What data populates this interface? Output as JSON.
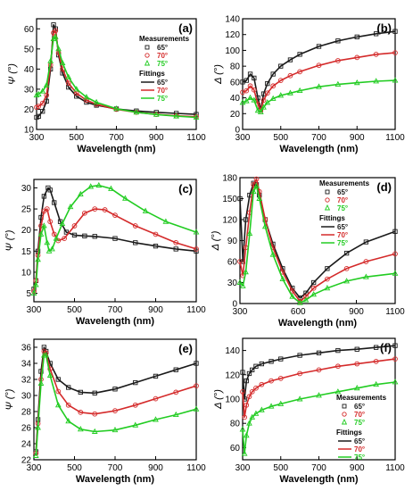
{
  "chart_data": [
    {
      "type": "line",
      "panel_label": "(a)",
      "xlabel": "Wavelength (nm)",
      "ylabel": "Ψ (°)",
      "xlim": [
        300,
        1100
      ],
      "ylim": [
        10,
        65
      ],
      "xticks": [
        300,
        500,
        700,
        900,
        1100
      ],
      "yticks": [
        10,
        20,
        30,
        40,
        50,
        60
      ],
      "legend": {
        "position": "right",
        "measurements_title": "Measurements",
        "fittings_title": "Fittings",
        "labels": [
          "65°",
          "70°",
          "75°"
        ]
      },
      "series": [
        {
          "name": "65°",
          "color": "#1a1a1a",
          "marker": "square",
          "x": [
            300,
            310,
            330,
            350,
            370,
            385,
            395,
            410,
            430,
            460,
            500,
            550,
            600,
            700,
            800,
            900,
            1000,
            1100
          ],
          "y": [
            16,
            16.5,
            19,
            24,
            40,
            62,
            60,
            47,
            38,
            31,
            26.5,
            23.5,
            22,
            20.2,
            19.2,
            18.5,
            18,
            17.5
          ]
        },
        {
          "name": "70°",
          "color": "#d42a2a",
          "marker": "circle",
          "x": [
            300,
            310,
            330,
            350,
            370,
            385,
            395,
            410,
            430,
            460,
            500,
            550,
            600,
            700,
            800,
            900,
            1000,
            1100
          ],
          "y": [
            21,
            21.5,
            23,
            27,
            42,
            58,
            59,
            48,
            40,
            33,
            28,
            24.5,
            22.5,
            20,
            18.5,
            17.5,
            16.8,
            16.3
          ]
        },
        {
          "name": "75°",
          "color": "#22cc22",
          "marker": "triangle",
          "x": [
            300,
            310,
            330,
            350,
            370,
            385,
            395,
            410,
            430,
            460,
            500,
            550,
            600,
            700,
            800,
            900,
            1000,
            1100
          ],
          "y": [
            27,
            27.5,
            29,
            32,
            44,
            55,
            56,
            50,
            43,
            36,
            30,
            26,
            23.5,
            20.3,
            18.5,
            17.4,
            16.6,
            16
          ]
        }
      ]
    },
    {
      "type": "line",
      "panel_label": "(b)",
      "xlabel": "Wavelength (nm)",
      "ylabel": "Δ (°)",
      "xlim": [
        300,
        1100
      ],
      "ylim": [
        0,
        140
      ],
      "xticks": [
        300,
        500,
        700,
        900,
        1100
      ],
      "yticks": [
        0,
        20,
        40,
        60,
        80,
        100,
        120,
        140
      ],
      "series": [
        {
          "name": "65°",
          "color": "#1a1a1a",
          "marker": "square",
          "x": [
            300,
            320,
            340,
            360,
            380,
            395,
            410,
            430,
            460,
            500,
            550,
            600,
            700,
            800,
            900,
            1000,
            1100
          ],
          "y": [
            60,
            62,
            70,
            65,
            40,
            25,
            45,
            58,
            70,
            80,
            88,
            95,
            105,
            112,
            117,
            121,
            124
          ]
        },
        {
          "name": "70°",
          "color": "#d42a2a",
          "marker": "circle",
          "x": [
            300,
            320,
            340,
            360,
            380,
            395,
            410,
            430,
            460,
            500,
            550,
            600,
            700,
            800,
            900,
            1000,
            1100
          ],
          "y": [
            47,
            49,
            55,
            50,
            32,
            24,
            37,
            46,
            55,
            62,
            68,
            73,
            81,
            87,
            91,
            95,
            97
          ]
        },
        {
          "name": "75°",
          "color": "#22cc22",
          "marker": "triangle",
          "x": [
            300,
            320,
            340,
            360,
            380,
            395,
            410,
            430,
            460,
            500,
            550,
            600,
            700,
            800,
            900,
            1000,
            1100
          ],
          "y": [
            34,
            36,
            40,
            37,
            24,
            22,
            28,
            34,
            39,
            43,
            46,
            49,
            54,
            57,
            59,
            61,
            62
          ]
        }
      ]
    },
    {
      "type": "line",
      "panel_label": "(c)",
      "xlabel": "Wavelength (nm)",
      "ylabel": "Ψ (°)",
      "xlim": [
        300,
        1100
      ],
      "ylim": [
        3,
        32
      ],
      "xticks": [
        300,
        500,
        700,
        900,
        1100
      ],
      "yticks": [
        5,
        10,
        15,
        20,
        25,
        30
      ],
      "series": [
        {
          "name": "65°",
          "color": "#1a1a1a",
          "marker": "square",
          "x": [
            300,
            310,
            320,
            335,
            350,
            370,
            380,
            400,
            430,
            460,
            500,
            550,
            600,
            700,
            800,
            900,
            1000,
            1100
          ],
          "y": [
            6,
            8,
            15,
            23,
            28,
            30,
            29.5,
            26.5,
            22,
            19.5,
            18.8,
            18.6,
            18.5,
            18,
            17,
            16.2,
            15.5,
            15
          ]
        },
        {
          "name": "70°",
          "color": "#d42a2a",
          "marker": "circle",
          "x": [
            300,
            310,
            320,
            335,
            350,
            365,
            380,
            400,
            420,
            450,
            500,
            550,
            600,
            650,
            700,
            800,
            900,
            1000,
            1100
          ],
          "y": [
            5.5,
            8,
            14,
            21,
            24.5,
            25,
            22,
            19,
            17.5,
            18,
            21,
            24,
            25,
            24.8,
            23.5,
            21,
            19,
            17,
            15.5
          ]
        },
        {
          "name": "75°",
          "color": "#22cc22",
          "marker": "triangle",
          "x": [
            300,
            310,
            320,
            335,
            350,
            365,
            375,
            390,
            410,
            440,
            480,
            530,
            580,
            620,
            680,
            750,
            850,
            950,
            1100
          ],
          "y": [
            5,
            7,
            13,
            19,
            21,
            17,
            15,
            15.5,
            18,
            21.5,
            25.5,
            28.5,
            30.3,
            30.6,
            29.8,
            27.5,
            24.5,
            22,
            19.5
          ]
        }
      ]
    },
    {
      "type": "line",
      "panel_label": "(d)",
      "xlabel": "Wavelength (nm)",
      "ylabel": "Δ (°)",
      "xlim": [
        300,
        1100
      ],
      "ylim": [
        0,
        180
      ],
      "xticks": [
        300,
        600,
        900,
        1100
      ],
      "yticks": [
        0,
        30,
        60,
        90,
        120,
        150,
        180
      ],
      "legend": {
        "position": "top-right",
        "measurements_title": "Measurements",
        "fittings_title": "Fittings",
        "labels": [
          "65°",
          "70°",
          "75°"
        ]
      },
      "series": [
        {
          "name": "65°",
          "color": "#1a1a1a",
          "marker": "square",
          "x": [
            300,
            315,
            330,
            350,
            370,
            385,
            400,
            430,
            470,
            520,
            570,
            610,
            640,
            680,
            750,
            850,
            950,
            1100
          ],
          "y": [
            150,
            60,
            120,
            155,
            172,
            170,
            155,
            120,
            85,
            50,
            22,
            8,
            15,
            30,
            50,
            72,
            88,
            103
          ]
        },
        {
          "name": "70°",
          "color": "#d42a2a",
          "marker": "circle",
          "x": [
            300,
            315,
            330,
            350,
            370,
            385,
            400,
            430,
            470,
            520,
            570,
            610,
            640,
            680,
            750,
            850,
            950,
            1100
          ],
          "y": [
            60,
            40,
            80,
            130,
            170,
            178,
            160,
            120,
            80,
            45,
            18,
            3,
            10,
            22,
            35,
            50,
            60,
            71
          ]
        },
        {
          "name": "75°",
          "color": "#22cc22",
          "marker": "triangle",
          "x": [
            300,
            315,
            330,
            350,
            370,
            385,
            400,
            430,
            470,
            520,
            570,
            610,
            640,
            680,
            750,
            850,
            950,
            1100
          ],
          "y": [
            30,
            25,
            45,
            100,
            160,
            168,
            150,
            110,
            70,
            35,
            10,
            1,
            5,
            13,
            22,
            32,
            38,
            43
          ]
        }
      ]
    },
    {
      "type": "line",
      "panel_label": "(e)",
      "xlabel": "Wavelength (nm)",
      "ylabel": "Ψ (°)",
      "xlim": [
        300,
        1100
      ],
      "ylim": [
        22,
        37
      ],
      "xticks": [
        300,
        500,
        700,
        900,
        1100
      ],
      "yticks": [
        22,
        24,
        26,
        28,
        30,
        32,
        34,
        36
      ],
      "series": [
        {
          "name": "65°",
          "color": "#1a1a1a",
          "marker": "square",
          "x": [
            310,
            320,
            335,
            350,
            360,
            380,
            420,
            470,
            530,
            600,
            700,
            800,
            900,
            1000,
            1100
          ],
          "y": [
            23,
            27,
            33,
            36,
            35.5,
            34,
            32,
            31,
            30.4,
            30.3,
            30.8,
            31.6,
            32.4,
            33.2,
            34
          ]
        },
        {
          "name": "70°",
          "color": "#d42a2a",
          "marker": "circle",
          "x": [
            310,
            320,
            335,
            350,
            360,
            380,
            420,
            470,
            530,
            600,
            700,
            800,
            900,
            1000,
            1100
          ],
          "y": [
            22.8,
            26.5,
            32,
            35.5,
            35.3,
            33.3,
            30.5,
            28.8,
            27.9,
            27.7,
            28.1,
            28.8,
            29.6,
            30.4,
            31.2
          ]
        },
        {
          "name": "75°",
          "color": "#22cc22",
          "marker": "triangle",
          "x": [
            310,
            320,
            335,
            350,
            360,
            380,
            420,
            470,
            530,
            600,
            700,
            800,
            900,
            1000,
            1100
          ],
          "y": [
            22.5,
            26,
            31.5,
            35,
            35,
            32.5,
            28.8,
            26.8,
            25.8,
            25.5,
            25.7,
            26.3,
            27,
            27.6,
            28.3
          ]
        }
      ]
    },
    {
      "type": "line",
      "panel_label": "(f)",
      "xlabel": "Wavelength (nm)",
      "ylabel": "Δ (°)",
      "xlim": [
        300,
        1100
      ],
      "ylim": [
        50,
        150
      ],
      "xticks": [
        300,
        500,
        700,
        900,
        1100
      ],
      "yticks": [
        60,
        80,
        100,
        120,
        140
      ],
      "legend": {
        "position": "bottom-right",
        "measurements_title": "Measurements",
        "fittings_title": "Fittings",
        "labels": [
          "65°",
          "70°",
          "75°"
        ]
      },
      "series": [
        {
          "name": "65°",
          "color": "#1a1a1a",
          "marker": "square",
          "x": [
            300,
            310,
            320,
            335,
            350,
            370,
            400,
            450,
            500,
            600,
            700,
            800,
            900,
            1000,
            1100
          ],
          "y": [
            122,
            100,
            115,
            121,
            124,
            127,
            129,
            131,
            133,
            136,
            138,
            140,
            141,
            142.5,
            144
          ]
        },
        {
          "name": "70°",
          "color": "#d42a2a",
          "marker": "circle",
          "x": [
            300,
            310,
            320,
            335,
            350,
            370,
            400,
            450,
            500,
            600,
            700,
            800,
            900,
            1000,
            1100
          ],
          "y": [
            106,
            85,
            95,
            102,
            106,
            109,
            112,
            115,
            117,
            121,
            124,
            127,
            129,
            131,
            133
          ]
        },
        {
          "name": "75°",
          "color": "#22cc22",
          "marker": "triangle",
          "x": [
            300,
            310,
            320,
            335,
            350,
            370,
            400,
            450,
            500,
            600,
            700,
            800,
            900,
            1000,
            1100
          ],
          "y": [
            75,
            55,
            70,
            80,
            85,
            88,
            91,
            94,
            96,
            100,
            103,
            106,
            109,
            112,
            114
          ]
        }
      ]
    }
  ]
}
